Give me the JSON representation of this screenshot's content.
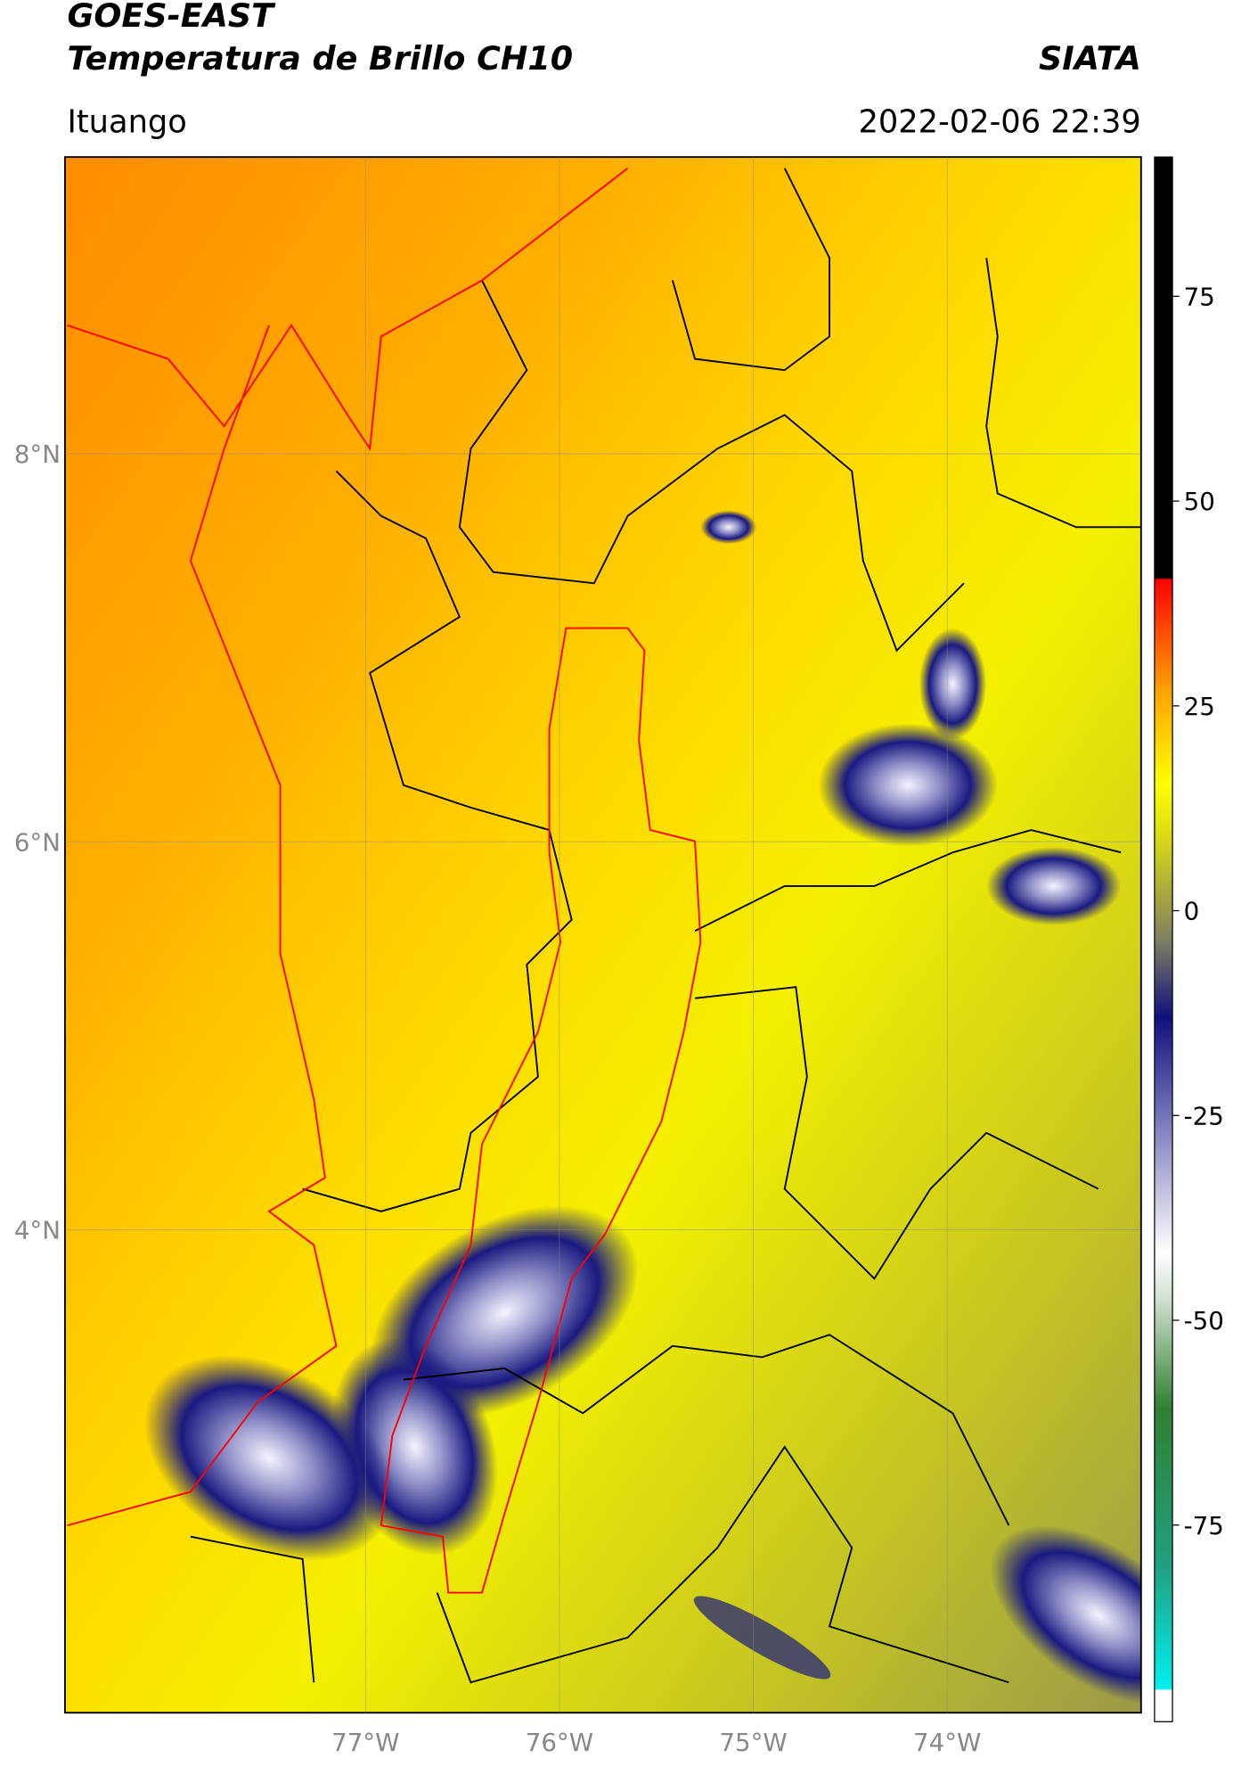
{
  "chart_data": {
    "type": "map",
    "title": "GOES-EAST",
    "subtitle": "Temperatura de Brillo CH10",
    "source": "SIATA",
    "location": "Ituango",
    "datetime": "2022-02-06 22:39",
    "xlim": [
      -78.55,
      -73.0
    ],
    "ylim": [
      1.51,
      9.53
    ],
    "xticks": [
      {
        "value": -77,
        "label": "77°W"
      },
      {
        "value": -76,
        "label": "76°W"
      },
      {
        "value": -75,
        "label": "75°W"
      },
      {
        "value": -74,
        "label": "74°W"
      }
    ],
    "yticks": [
      {
        "value": 8,
        "label": "8°N"
      },
      {
        "value": 6,
        "label": "6°N"
      },
      {
        "value": 4,
        "label": "4°N"
      }
    ],
    "grid": true,
    "colorbar": {
      "lim": [
        -99,
        92
      ],
      "ticks": [
        75,
        50,
        25,
        0,
        -25,
        -50,
        -75
      ]
    }
  }
}
